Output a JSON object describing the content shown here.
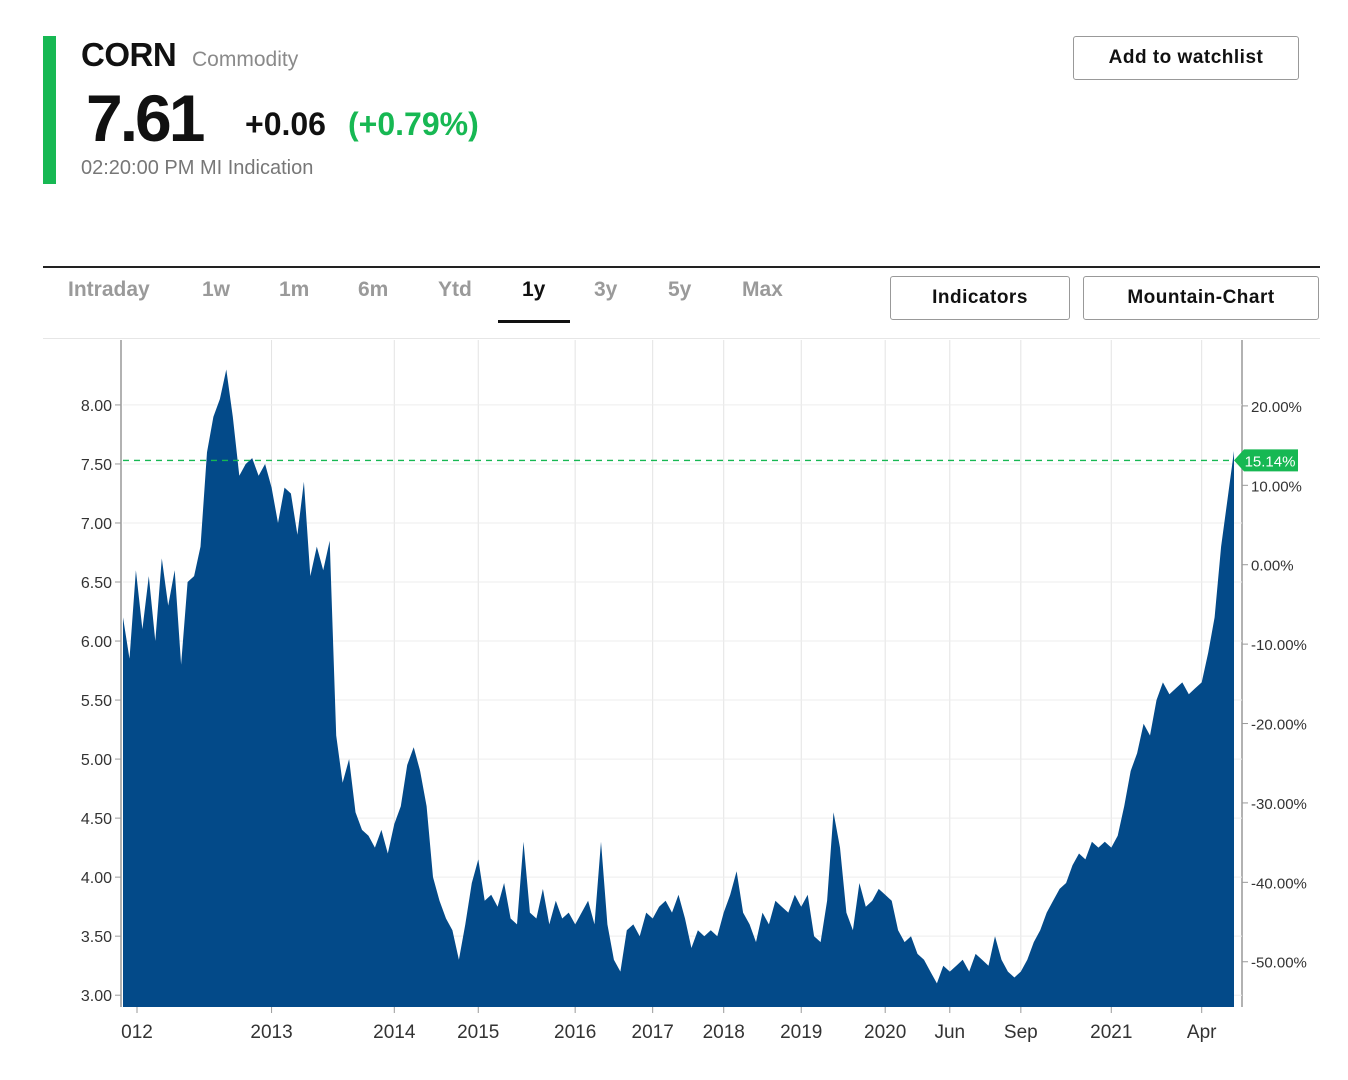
{
  "header": {
    "symbol": "CORN",
    "type_label": "Commodity",
    "price": "7.61",
    "change": "+0.06",
    "change_pct": "(+0.79%)",
    "timestamp": "02:20:00 PM MI Indication",
    "watchlist_label": "Add to watchlist",
    "accent_color": "#17b853"
  },
  "tabs": [
    {
      "label": "Intraday",
      "active": false
    },
    {
      "label": "1w",
      "active": false
    },
    {
      "label": "1m",
      "active": false
    },
    {
      "label": "6m",
      "active": false
    },
    {
      "label": "Ytd",
      "active": false
    },
    {
      "label": "1y",
      "active": true
    },
    {
      "label": "3y",
      "active": false
    },
    {
      "label": "5y",
      "active": false
    },
    {
      "label": "Max",
      "active": false
    }
  ],
  "controls": {
    "indicators_label": "Indicators",
    "chart_type_label": "Mountain-Chart"
  },
  "chart_data": {
    "type": "area",
    "series": [
      {
        "name": "CORN",
        "color": "#034a89"
      }
    ],
    "x_ticks": [
      "012",
      "2013",
      "2014",
      "2015",
      "2016",
      "2017",
      "2018",
      "2019",
      "2020",
      "Jun",
      "Sep",
      "2021",
      "Apr"
    ],
    "y_ticks": [
      "8.00",
      "7.50",
      "7.00",
      "6.50",
      "6.00",
      "5.50",
      "5.00",
      "4.50",
      "4.00",
      "3.50",
      "3.00"
    ],
    "y_values": [
      8.0,
      7.5,
      7.0,
      6.5,
      6.0,
      5.5,
      5.0,
      4.5,
      4.0,
      3.5,
      3.0
    ],
    "y_right_ticks": [
      "20.00%",
      "10.00%",
      "0.00%",
      "-10.00%",
      "-20.00%",
      "-30.00%",
      "-40.00%",
      "-50.00%"
    ],
    "y_right_values": [
      20,
      10,
      0,
      -10,
      -20,
      -30,
      -40,
      -50
    ],
    "ylim": [
      2.9,
      8.55
    ],
    "y_right_lim": [
      -55.7,
      28.3
    ],
    "reference_line": {
      "value": 7.53,
      "label": "15.14%",
      "color": "#17b853"
    },
    "points": [
      [
        "2012",
        6.2
      ],
      [
        "2012",
        5.85
      ],
      [
        "2012",
        6.6
      ],
      [
        "2012",
        6.1
      ],
      [
        "2012",
        6.55
      ],
      [
        "2012",
        6.0
      ],
      [
        "2012",
        6.7
      ],
      [
        "2012",
        6.3
      ],
      [
        "2012",
        6.6
      ],
      [
        "2012",
        5.8
      ],
      [
        "2012",
        6.5
      ],
      [
        "2012",
        6.55
      ],
      [
        "2012",
        6.8
      ],
      [
        "2012",
        7.6
      ],
      [
        "2012",
        7.9
      ],
      [
        "2012",
        8.05
      ],
      [
        "2012",
        8.3
      ],
      [
        "2012",
        7.9
      ],
      [
        "2012",
        7.4
      ],
      [
        "2012",
        7.5
      ],
      [
        "2012",
        7.55
      ],
      [
        "2012",
        7.4
      ],
      [
        "2012",
        7.5
      ],
      [
        "2013",
        7.3
      ],
      [
        "2013",
        7.0
      ],
      [
        "2013",
        7.3
      ],
      [
        "2013",
        7.25
      ],
      [
        "2013",
        6.9
      ],
      [
        "2013",
        7.35
      ],
      [
        "2013",
        6.55
      ],
      [
        "2013",
        6.8
      ],
      [
        "2013",
        6.6
      ],
      [
        "2013",
        6.85
      ],
      [
        "2013",
        5.2
      ],
      [
        "2013",
        4.8
      ],
      [
        "2013",
        5.0
      ],
      [
        "2013",
        4.55
      ],
      [
        "2013",
        4.4
      ],
      [
        "2013",
        4.35
      ],
      [
        "2013",
        4.25
      ],
      [
        "2013",
        4.4
      ],
      [
        "2013",
        4.2
      ],
      [
        "2014",
        4.45
      ],
      [
        "2014",
        4.6
      ],
      [
        "2014",
        4.95
      ],
      [
        "2014",
        5.1
      ],
      [
        "2014",
        4.9
      ],
      [
        "2014",
        4.6
      ],
      [
        "2014",
        4.0
      ],
      [
        "2014",
        3.8
      ],
      [
        "2014",
        3.65
      ],
      [
        "2014",
        3.55
      ],
      [
        "2014",
        3.3
      ],
      [
        "2014",
        3.6
      ],
      [
        "2014",
        3.95
      ],
      [
        "2015",
        4.15
      ],
      [
        "2015",
        3.8
      ],
      [
        "2015",
        3.85
      ],
      [
        "2015",
        3.75
      ],
      [
        "2015",
        3.95
      ],
      [
        "2015",
        3.65
      ],
      [
        "2015",
        3.6
      ],
      [
        "2015",
        4.3
      ],
      [
        "2015",
        3.7
      ],
      [
        "2015",
        3.65
      ],
      [
        "2015",
        3.9
      ],
      [
        "2015",
        3.6
      ],
      [
        "2015",
        3.8
      ],
      [
        "2015",
        3.65
      ],
      [
        "2015",
        3.7
      ],
      [
        "2016",
        3.6
      ],
      [
        "2016",
        3.7
      ],
      [
        "2016",
        3.8
      ],
      [
        "2016",
        3.6
      ],
      [
        "2016",
        4.3
      ],
      [
        "2016",
        3.6
      ],
      [
        "2016",
        3.3
      ],
      [
        "2016",
        3.2
      ],
      [
        "2016",
        3.55
      ],
      [
        "2016",
        3.6
      ],
      [
        "2016",
        3.5
      ],
      [
        "2016",
        3.7
      ],
      [
        "2017",
        3.65
      ],
      [
        "2017",
        3.75
      ],
      [
        "2017",
        3.8
      ],
      [
        "2017",
        3.7
      ],
      [
        "2017",
        3.85
      ],
      [
        "2017",
        3.65
      ],
      [
        "2017",
        3.4
      ],
      [
        "2017",
        3.55
      ],
      [
        "2017",
        3.5
      ],
      [
        "2017",
        3.55
      ],
      [
        "2017",
        3.5
      ],
      [
        "2018",
        3.7
      ],
      [
        "2018",
        3.85
      ],
      [
        "2018",
        4.05
      ],
      [
        "2018",
        3.7
      ],
      [
        "2018",
        3.6
      ],
      [
        "2018",
        3.45
      ],
      [
        "2018",
        3.7
      ],
      [
        "2018",
        3.6
      ],
      [
        "2018",
        3.8
      ],
      [
        "2018",
        3.75
      ],
      [
        "2018",
        3.7
      ],
      [
        "2018",
        3.85
      ],
      [
        "2019",
        3.75
      ],
      [
        "2019",
        3.85
      ],
      [
        "2019",
        3.5
      ],
      [
        "2019",
        3.45
      ],
      [
        "2019",
        3.8
      ],
      [
        "2019",
        4.55
      ],
      [
        "2019",
        4.25
      ],
      [
        "2019",
        3.7
      ],
      [
        "2019",
        3.55
      ],
      [
        "2019",
        3.95
      ],
      [
        "2019",
        3.75
      ],
      [
        "2019",
        3.8
      ],
      [
        "2019",
        3.9
      ],
      [
        "2020",
        3.85
      ],
      [
        "2020",
        3.8
      ],
      [
        "2020",
        3.55
      ],
      [
        "2020",
        3.45
      ],
      [
        "2020",
        3.5
      ],
      [
        "2020",
        3.35
      ],
      [
        "2020",
        3.3
      ],
      [
        "2020",
        3.2
      ],
      [
        "2020",
        3.1
      ],
      [
        "2020",
        3.25
      ],
      [
        "Jun",
        3.2
      ],
      [
        "Jun",
        3.25
      ],
      [
        "Jun",
        3.3
      ],
      [
        "Jun",
        3.2
      ],
      [
        "Jun",
        3.35
      ],
      [
        "Jun",
        3.3
      ],
      [
        "Jun",
        3.25
      ],
      [
        "Jun",
        3.5
      ],
      [
        "Jun",
        3.3
      ],
      [
        "Jun",
        3.2
      ],
      [
        "Jun",
        3.15
      ],
      [
        "Sep",
        3.2
      ],
      [
        "Sep",
        3.3
      ],
      [
        "Sep",
        3.45
      ],
      [
        "Sep",
        3.55
      ],
      [
        "Sep",
        3.7
      ],
      [
        "Sep",
        3.8
      ],
      [
        "Sep",
        3.9
      ],
      [
        "Sep",
        3.95
      ],
      [
        "Sep",
        4.1
      ],
      [
        "Sep",
        4.2
      ],
      [
        "Sep",
        4.15
      ],
      [
        "Sep",
        4.3
      ],
      [
        "Sep",
        4.25
      ],
      [
        "Sep",
        4.3
      ],
      [
        "2021",
        4.25
      ],
      [
        "2021",
        4.35
      ],
      [
        "2021",
        4.6
      ],
      [
        "2021",
        4.9
      ],
      [
        "2021",
        5.05
      ],
      [
        "2021",
        5.3
      ],
      [
        "2021",
        5.2
      ],
      [
        "2021",
        5.5
      ],
      [
        "2021",
        5.65
      ],
      [
        "2021",
        5.55
      ],
      [
        "2021",
        5.6
      ],
      [
        "2021",
        5.65
      ],
      [
        "2021",
        5.55
      ],
      [
        "2021",
        5.6
      ],
      [
        "Apr",
        5.65
      ],
      [
        "Apr",
        5.9
      ],
      [
        "Apr",
        6.2
      ],
      [
        "Apr",
        6.8
      ],
      [
        "Apr",
        7.2
      ],
      [
        "Apr",
        7.61
      ]
    ]
  }
}
